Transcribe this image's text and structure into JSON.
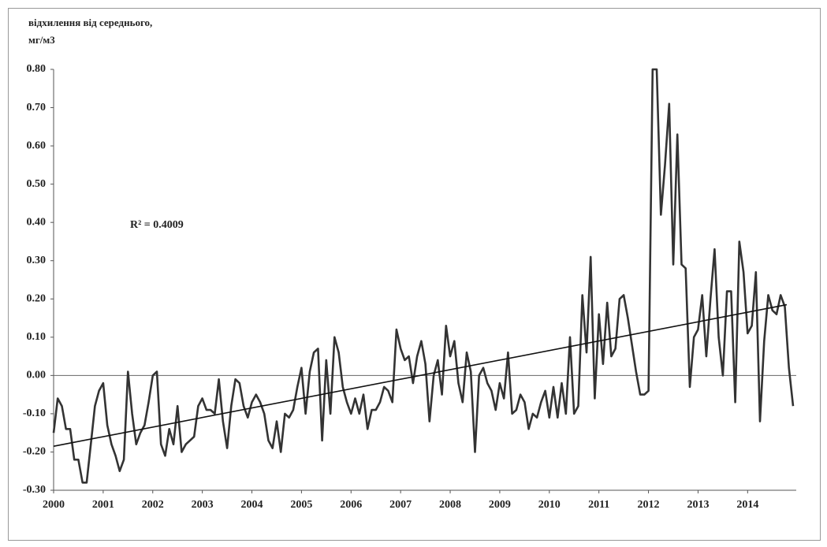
{
  "chart_data": {
    "type": "line",
    "ylabel": [
      "відхилення від середнього,",
      "мг/м3"
    ],
    "annotation": "R² = 0.4009",
    "categories": [
      "2000",
      null,
      null,
      null,
      null,
      null,
      null,
      null,
      null,
      null,
      null,
      null,
      "2001",
      null,
      null,
      null,
      null,
      null,
      null,
      null,
      null,
      null,
      null,
      null,
      "2002",
      null,
      null,
      null,
      null,
      null,
      null,
      null,
      null,
      null,
      null,
      null,
      "2003",
      null,
      null,
      null,
      null,
      null,
      null,
      null,
      null,
      null,
      null,
      null,
      "2004",
      null,
      null,
      null,
      null,
      null,
      null,
      null,
      null,
      null,
      null,
      null,
      "2005",
      null,
      null,
      null,
      null,
      null,
      null,
      null,
      null,
      null,
      null,
      null,
      "2006",
      null,
      null,
      null,
      null,
      null,
      null,
      null,
      null,
      null,
      null,
      null,
      "2007",
      null,
      null,
      null,
      null,
      null,
      null,
      null,
      null,
      null,
      null,
      null,
      "2008",
      null,
      null,
      null,
      null,
      null,
      null,
      null,
      null,
      null,
      null,
      null,
      "2009",
      null,
      null,
      null,
      null,
      null,
      null,
      null,
      null,
      null,
      null,
      null,
      "2010",
      null,
      null,
      null,
      null,
      null,
      null,
      null,
      null,
      null,
      null,
      null,
      "2011",
      null,
      null,
      null,
      null,
      null,
      null,
      null,
      null,
      null,
      null,
      null,
      "2012",
      null,
      null,
      null,
      null,
      null,
      null,
      null,
      null,
      null,
      null,
      null,
      "2013",
      null,
      null,
      null,
      null,
      null,
      null,
      null,
      null,
      null,
      null,
      null,
      "2014",
      null,
      null,
      null,
      null,
      null,
      null,
      null,
      null,
      null,
      null,
      null
    ],
    "values": [
      -0.15,
      -0.06,
      -0.08,
      -0.14,
      -0.14,
      -0.22,
      -0.22,
      -0.28,
      -0.28,
      -0.18,
      -0.08,
      -0.04,
      -0.02,
      -0.13,
      -0.18,
      -0.21,
      -0.25,
      -0.22,
      0.01,
      -0.1,
      -0.18,
      -0.15,
      -0.13,
      -0.07,
      0.0,
      0.01,
      -0.18,
      -0.21,
      -0.14,
      -0.18,
      -0.08,
      -0.2,
      -0.18,
      -0.17,
      -0.16,
      -0.08,
      -0.06,
      -0.09,
      -0.09,
      -0.1,
      -0.01,
      -0.12,
      -0.19,
      -0.08,
      -0.01,
      -0.02,
      -0.08,
      -0.11,
      -0.07,
      -0.05,
      -0.07,
      -0.1,
      -0.17,
      -0.19,
      -0.12,
      -0.2,
      -0.1,
      -0.11,
      -0.09,
      -0.03,
      0.02,
      -0.1,
      0.01,
      0.06,
      0.07,
      -0.17,
      0.04,
      -0.1,
      0.1,
      0.06,
      -0.03,
      -0.07,
      -0.1,
      -0.06,
      -0.1,
      -0.05,
      -0.14,
      -0.09,
      -0.09,
      -0.07,
      -0.03,
      -0.04,
      -0.07,
      0.12,
      0.07,
      0.04,
      0.05,
      -0.02,
      0.05,
      0.09,
      0.03,
      -0.12,
      0.0,
      0.04,
      -0.05,
      0.13,
      0.05,
      0.09,
      -0.02,
      -0.07,
      0.06,
      0.01,
      -0.2,
      0.0,
      0.02,
      -0.02,
      -0.04,
      -0.09,
      -0.02,
      -0.06,
      0.06,
      -0.1,
      -0.09,
      -0.05,
      -0.07,
      -0.14,
      -0.1,
      -0.11,
      -0.07,
      -0.04,
      -0.11,
      -0.03,
      -0.11,
      -0.02,
      -0.1,
      0.1,
      -0.1,
      -0.08,
      0.21,
      0.06,
      0.31,
      -0.06,
      0.16,
      0.03,
      0.19,
      0.05,
      0.07,
      0.2,
      0.21,
      0.15,
      0.08,
      0.01,
      -0.05,
      -0.05,
      -0.04,
      0.8,
      0.8,
      0.42,
      0.55,
      0.71,
      0.29,
      0.63,
      0.29,
      0.28,
      -0.03,
      0.1,
      0.12,
      0.21,
      0.05,
      0.2,
      0.33,
      0.1,
      0.0,
      0.22,
      0.22,
      -0.07,
      0.35,
      0.27,
      0.11,
      0.13,
      0.27,
      -0.12,
      0.09,
      0.21,
      0.17,
      0.16,
      0.21,
      0.18,
      0.02,
      -0.08
    ],
    "color": "#333333",
    "trendline": {
      "start": -0.185,
      "end": 0.185,
      "color": "#111111"
    },
    "ylim": [
      -0.3,
      0.8
    ],
    "yticks": [
      {
        "value": -0.3,
        "label": "-0.30"
      },
      {
        "value": -0.2,
        "label": "-0.20"
      },
      {
        "value": -0.1,
        "label": "-0.10"
      },
      {
        "value": 0.0,
        "label": "0.00"
      },
      {
        "value": 0.1,
        "label": "0.10"
      },
      {
        "value": 0.2,
        "label": "0.20"
      },
      {
        "value": 0.3,
        "label": "0.30"
      },
      {
        "value": 0.4,
        "label": "0.40"
      },
      {
        "value": 0.5,
        "label": "0.50"
      },
      {
        "value": 0.6,
        "label": "0.60"
      },
      {
        "value": 0.7,
        "label": "0.70"
      },
      {
        "value": 0.8,
        "label": "0.80"
      }
    ],
    "zero_line": true
  }
}
